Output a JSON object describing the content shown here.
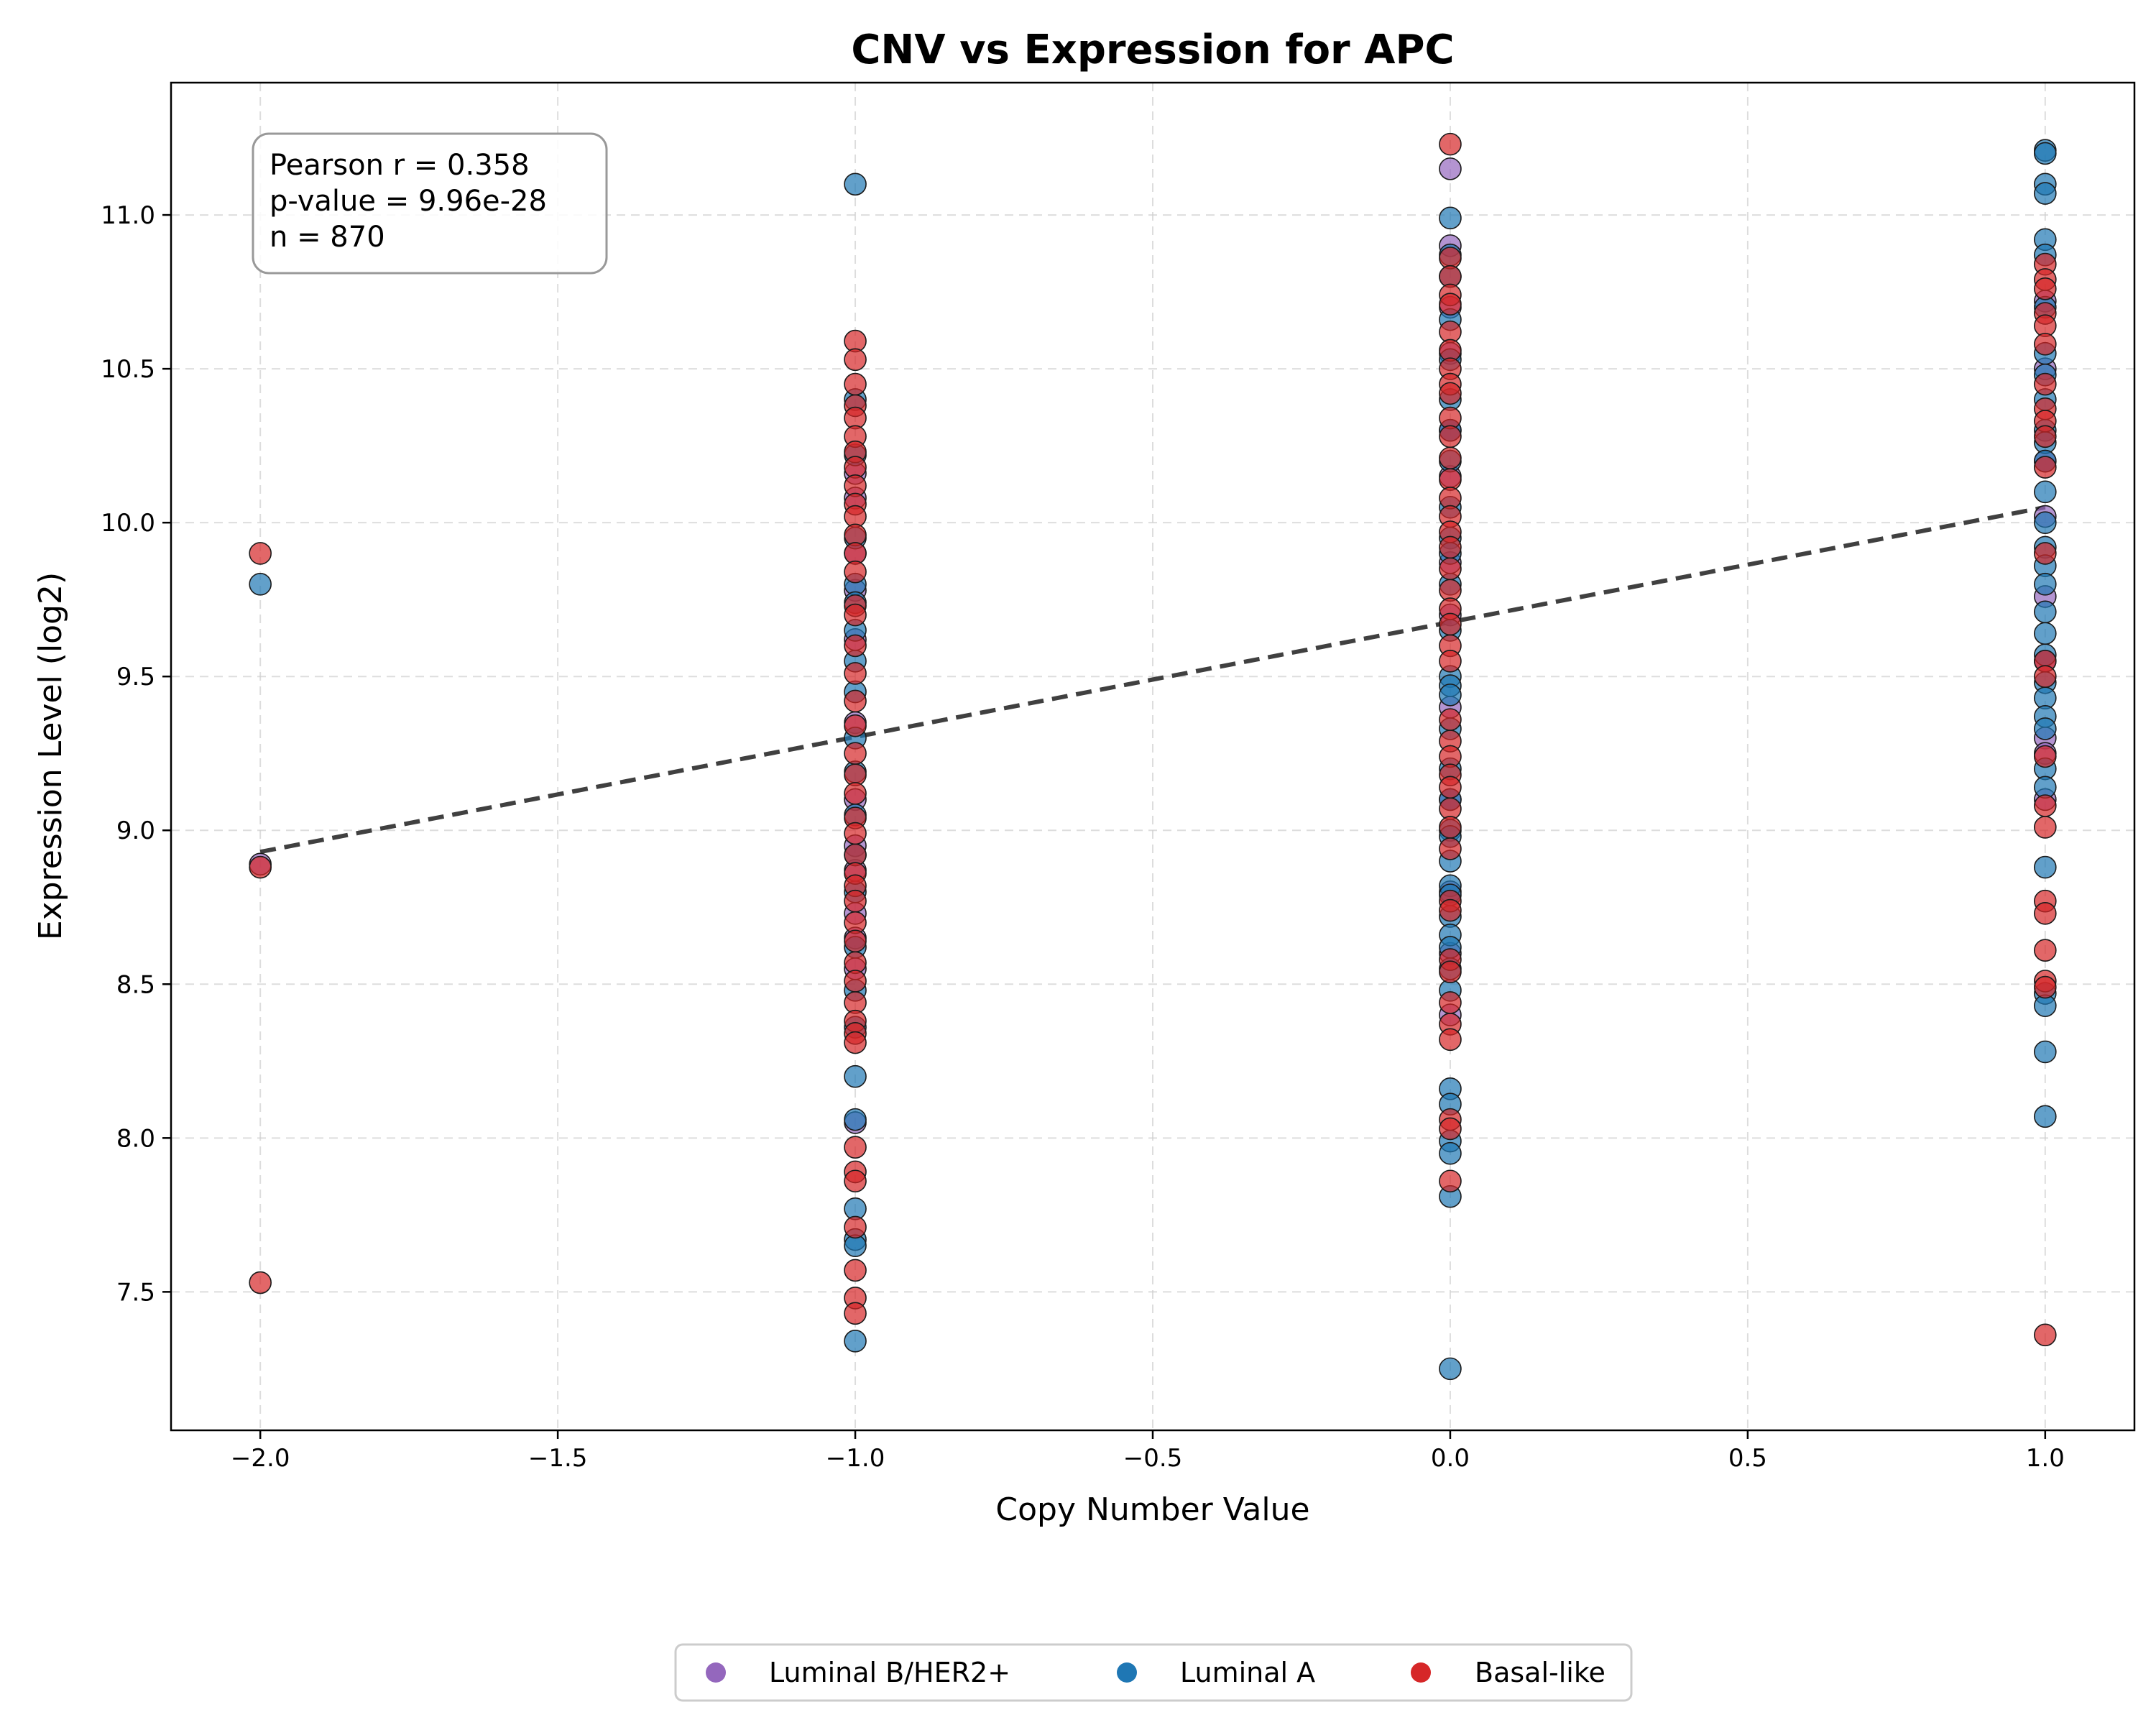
{
  "chart_data": {
    "type": "scatter",
    "title": "CNV vs Expression for APC",
    "xlabel": "Copy Number Value",
    "ylabel": "Expression Level (log2)",
    "xlim": [
      -2.15,
      1.15
    ],
    "ylim": [
      7.05,
      11.43
    ],
    "x_ticks": [
      -2.0,
      -1.5,
      -1.0,
      -0.5,
      0.0,
      0.5,
      1.0
    ],
    "x_tick_labels": [
      "−2.0",
      "−1.5",
      "−1.0",
      "−0.5",
      "0.0",
      "0.5",
      "1.0"
    ],
    "y_ticks": [
      7.5,
      8.0,
      8.5,
      9.0,
      9.5,
      10.0,
      10.5,
      11.0
    ],
    "y_tick_labels": [
      "7.5",
      "8.0",
      "8.5",
      "9.0",
      "9.5",
      "10.0",
      "10.5",
      "11.0"
    ],
    "grid": true,
    "legend_position": "bottom-center",
    "stats": {
      "line1": "Pearson r = 0.358",
      "line2": "p-value = 9.96e-28",
      "line3": "n = 870"
    },
    "trend_line": {
      "x": [
        -2.0,
        1.0
      ],
      "y": [
        8.93,
        10.05
      ]
    },
    "series": [
      {
        "name": "Luminal B/HER2+",
        "color": "#9467bd",
        "points": [
          [
            -2.0,
            8.89
          ],
          [
            -1.0,
            10.16
          ],
          [
            -1.0,
            10.08
          ],
          [
            -1.0,
            9.9
          ],
          [
            -1.0,
            9.78
          ],
          [
            -1.0,
            9.62
          ],
          [
            -1.0,
            9.35
          ],
          [
            -1.0,
            9.1
          ],
          [
            -1.0,
            8.95
          ],
          [
            -1.0,
            8.87
          ],
          [
            -1.0,
            8.73
          ],
          [
            -1.0,
            8.65
          ],
          [
            -1.0,
            8.55
          ],
          [
            -1.0,
            8.05
          ],
          [
            0.0,
            11.15
          ],
          [
            0.0,
            10.9
          ],
          [
            0.0,
            10.7
          ],
          [
            0.0,
            10.55
          ],
          [
            0.0,
            10.3
          ],
          [
            0.0,
            10.15
          ],
          [
            0.0,
            9.87
          ],
          [
            0.0,
            9.7
          ],
          [
            0.0,
            9.4
          ],
          [
            0.0,
            9.1
          ],
          [
            0.0,
            8.8
          ],
          [
            0.0,
            8.6
          ],
          [
            0.0,
            8.4
          ],
          [
            1.0,
            10.72
          ],
          [
            1.0,
            10.5
          ],
          [
            1.0,
            10.2
          ],
          [
            1.0,
            10.02
          ],
          [
            1.0,
            9.76
          ],
          [
            1.0,
            9.55
          ],
          [
            1.0,
            9.3
          ],
          [
            1.0,
            9.25
          ],
          [
            1.0,
            9.1
          ]
        ]
      },
      {
        "name": "Luminal A",
        "color": "#1f77b4",
        "points": [
          [
            -2.0,
            9.8
          ],
          [
            -1.0,
            11.1
          ],
          [
            -1.0,
            10.4
          ],
          [
            -1.0,
            10.22
          ],
          [
            -1.0,
            9.95
          ],
          [
            -1.0,
            9.8
          ],
          [
            -1.0,
            9.74
          ],
          [
            -1.0,
            9.65
          ],
          [
            -1.0,
            9.55
          ],
          [
            -1.0,
            9.45
          ],
          [
            -1.0,
            9.3
          ],
          [
            -1.0,
            9.19
          ],
          [
            -1.0,
            9.05
          ],
          [
            -1.0,
            8.92
          ],
          [
            -1.0,
            8.8
          ],
          [
            -1.0,
            8.62
          ],
          [
            -1.0,
            8.48
          ],
          [
            -1.0,
            8.36
          ],
          [
            -1.0,
            8.2
          ],
          [
            -1.0,
            8.06
          ],
          [
            -1.0,
            7.77
          ],
          [
            -1.0,
            7.67
          ],
          [
            -1.0,
            7.65
          ],
          [
            -1.0,
            7.34
          ],
          [
            0.0,
            10.99
          ],
          [
            0.0,
            10.87
          ],
          [
            0.0,
            10.8
          ],
          [
            0.0,
            10.66
          ],
          [
            0.0,
            10.53
          ],
          [
            0.0,
            10.4
          ],
          [
            0.0,
            10.3
          ],
          [
            0.0,
            10.2
          ],
          [
            0.0,
            10.05
          ],
          [
            0.0,
            9.95
          ],
          [
            0.0,
            9.9
          ],
          [
            0.0,
            9.8
          ],
          [
            0.0,
            9.65
          ],
          [
            0.0,
            9.5
          ],
          [
            0.0,
            9.47
          ],
          [
            0.0,
            9.44
          ],
          [
            0.0,
            9.33
          ],
          [
            0.0,
            9.2
          ],
          [
            0.0,
            9.1
          ],
          [
            0.0,
            9.0
          ],
          [
            0.0,
            8.98
          ],
          [
            0.0,
            8.9
          ],
          [
            0.0,
            8.82
          ],
          [
            0.0,
            8.79
          ],
          [
            0.0,
            8.72
          ],
          [
            0.0,
            8.66
          ],
          [
            0.0,
            8.62
          ],
          [
            0.0,
            8.55
          ],
          [
            0.0,
            8.48
          ],
          [
            0.0,
            8.16
          ],
          [
            0.0,
            8.11
          ],
          [
            0.0,
            7.99
          ],
          [
            0.0,
            7.95
          ],
          [
            0.0,
            7.81
          ],
          [
            0.0,
            7.25
          ],
          [
            1.0,
            11.21
          ],
          [
            1.0,
            11.2
          ],
          [
            1.0,
            11.1
          ],
          [
            1.0,
            11.07
          ],
          [
            1.0,
            10.92
          ],
          [
            1.0,
            10.87
          ],
          [
            1.0,
            10.7
          ],
          [
            1.0,
            10.55
          ],
          [
            1.0,
            10.48
          ],
          [
            1.0,
            10.4
          ],
          [
            1.0,
            10.3
          ],
          [
            1.0,
            10.26
          ],
          [
            1.0,
            10.2
          ],
          [
            1.0,
            10.1
          ],
          [
            1.0,
            10.0
          ],
          [
            1.0,
            9.92
          ],
          [
            1.0,
            9.86
          ],
          [
            1.0,
            9.8
          ],
          [
            1.0,
            9.71
          ],
          [
            1.0,
            9.64
          ],
          [
            1.0,
            9.57
          ],
          [
            1.0,
            9.48
          ],
          [
            1.0,
            9.43
          ],
          [
            1.0,
            9.37
          ],
          [
            1.0,
            9.33
          ],
          [
            1.0,
            9.2
          ],
          [
            1.0,
            9.14
          ],
          [
            1.0,
            8.88
          ],
          [
            1.0,
            8.47
          ],
          [
            1.0,
            8.43
          ],
          [
            1.0,
            8.28
          ],
          [
            1.0,
            8.07
          ]
        ]
      },
      {
        "name": "Basal-like",
        "color": "#d62728",
        "points": [
          [
            -2.0,
            9.9
          ],
          [
            -2.0,
            8.88
          ],
          [
            -2.0,
            7.53
          ],
          [
            -1.0,
            10.59
          ],
          [
            -1.0,
            10.53
          ],
          [
            -1.0,
            10.45
          ],
          [
            -1.0,
            10.38
          ],
          [
            -1.0,
            10.34
          ],
          [
            -1.0,
            10.28
          ],
          [
            -1.0,
            10.23
          ],
          [
            -1.0,
            10.18
          ],
          [
            -1.0,
            10.12
          ],
          [
            -1.0,
            10.06
          ],
          [
            -1.0,
            10.02
          ],
          [
            -1.0,
            9.96
          ],
          [
            -1.0,
            9.9
          ],
          [
            -1.0,
            9.84
          ],
          [
            -1.0,
            9.73
          ],
          [
            -1.0,
            9.7
          ],
          [
            -1.0,
            9.6
          ],
          [
            -1.0,
            9.51
          ],
          [
            -1.0,
            9.42
          ],
          [
            -1.0,
            9.34
          ],
          [
            -1.0,
            9.25
          ],
          [
            -1.0,
            9.18
          ],
          [
            -1.0,
            9.12
          ],
          [
            -1.0,
            9.04
          ],
          [
            -1.0,
            8.99
          ],
          [
            -1.0,
            8.92
          ],
          [
            -1.0,
            8.86
          ],
          [
            -1.0,
            8.82
          ],
          [
            -1.0,
            8.77
          ],
          [
            -1.0,
            8.7
          ],
          [
            -1.0,
            8.64
          ],
          [
            -1.0,
            8.57
          ],
          [
            -1.0,
            8.51
          ],
          [
            -1.0,
            8.44
          ],
          [
            -1.0,
            8.38
          ],
          [
            -1.0,
            8.34
          ],
          [
            -1.0,
            8.31
          ],
          [
            -1.0,
            7.97
          ],
          [
            -1.0,
            7.89
          ],
          [
            -1.0,
            7.86
          ],
          [
            -1.0,
            7.71
          ],
          [
            -1.0,
            7.57
          ],
          [
            -1.0,
            7.48
          ],
          [
            -1.0,
            7.43
          ],
          [
            0.0,
            11.23
          ],
          [
            0.0,
            10.86
          ],
          [
            0.0,
            10.8
          ],
          [
            0.0,
            10.74
          ],
          [
            0.0,
            10.71
          ],
          [
            0.0,
            10.62
          ],
          [
            0.0,
            10.56
          ],
          [
            0.0,
            10.5
          ],
          [
            0.0,
            10.45
          ],
          [
            0.0,
            10.42
          ],
          [
            0.0,
            10.34
          ],
          [
            0.0,
            10.28
          ],
          [
            0.0,
            10.21
          ],
          [
            0.0,
            10.14
          ],
          [
            0.0,
            10.08
          ],
          [
            0.0,
            10.02
          ],
          [
            0.0,
            9.97
          ],
          [
            0.0,
            9.92
          ],
          [
            0.0,
            9.85
          ],
          [
            0.0,
            9.78
          ],
          [
            0.0,
            9.72
          ],
          [
            0.0,
            9.67
          ],
          [
            0.0,
            9.6
          ],
          [
            0.0,
            9.55
          ],
          [
            0.0,
            9.36
          ],
          [
            0.0,
            9.29
          ],
          [
            0.0,
            9.24
          ],
          [
            0.0,
            9.18
          ],
          [
            0.0,
            9.14
          ],
          [
            0.0,
            9.07
          ],
          [
            0.0,
            9.01
          ],
          [
            0.0,
            8.94
          ],
          [
            0.0,
            8.77
          ],
          [
            0.0,
            8.74
          ],
          [
            0.0,
            8.58
          ],
          [
            0.0,
            8.54
          ],
          [
            0.0,
            8.44
          ],
          [
            0.0,
            8.37
          ],
          [
            0.0,
            8.32
          ],
          [
            0.0,
            8.06
          ],
          [
            0.0,
            8.03
          ],
          [
            0.0,
            7.86
          ],
          [
            1.0,
            10.84
          ],
          [
            1.0,
            10.79
          ],
          [
            1.0,
            10.76
          ],
          [
            1.0,
            10.68
          ],
          [
            1.0,
            10.64
          ],
          [
            1.0,
            10.58
          ],
          [
            1.0,
            10.45
          ],
          [
            1.0,
            10.37
          ],
          [
            1.0,
            10.33
          ],
          [
            1.0,
            10.28
          ],
          [
            1.0,
            10.18
          ],
          [
            1.0,
            9.9
          ],
          [
            1.0,
            9.55
          ],
          [
            1.0,
            9.5
          ],
          [
            1.0,
            9.24
          ],
          [
            1.0,
            9.08
          ],
          [
            1.0,
            9.01
          ],
          [
            1.0,
            8.77
          ],
          [
            1.0,
            8.73
          ],
          [
            1.0,
            8.61
          ],
          [
            1.0,
            8.51
          ],
          [
            1.0,
            8.49
          ],
          [
            1.0,
            7.36
          ]
        ]
      }
    ]
  }
}
